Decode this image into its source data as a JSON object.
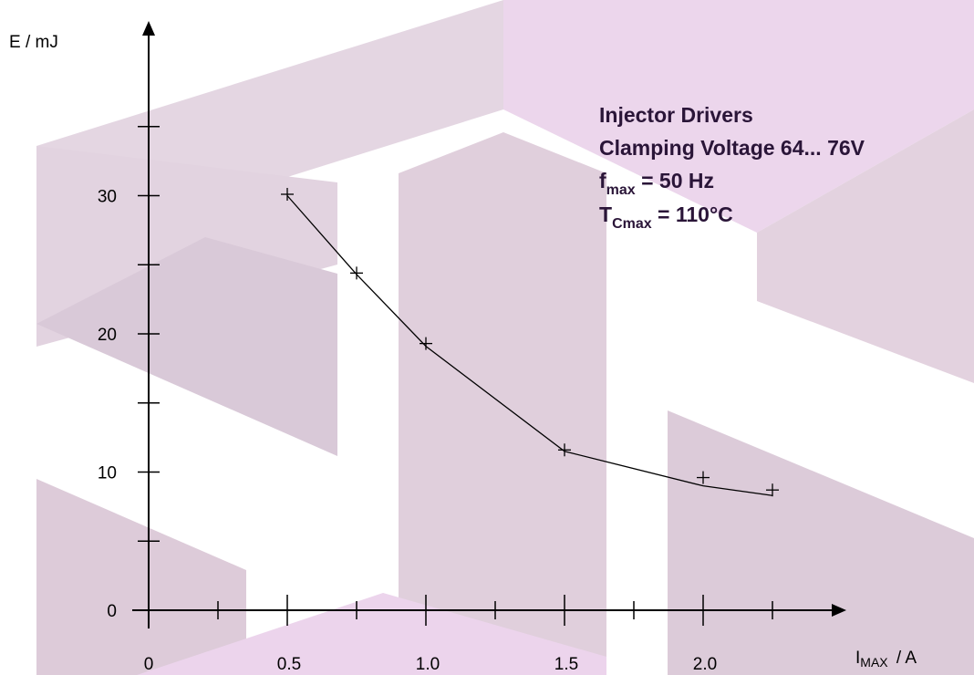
{
  "chart_data": {
    "type": "line",
    "x": [
      0.5,
      0.75,
      1.0,
      1.5,
      2.0,
      2.25
    ],
    "y": [
      30,
      24.3,
      19.1,
      11.5,
      9.0,
      8.3
    ],
    "markers": [
      {
        "x": 0.5,
        "y": 30.1
      },
      {
        "x": 0.75,
        "y": 24.4
      },
      {
        "x": 1.0,
        "y": 19.3
      },
      {
        "x": 1.5,
        "y": 11.6
      },
      {
        "x": 2.0,
        "y": 9.6
      },
      {
        "x": 2.25,
        "y": 8.7
      }
    ],
    "xlim": [
      0,
      2.5
    ],
    "ylim": [
      0,
      40
    ],
    "x_ticks": [
      0,
      0.25,
      0.5,
      0.75,
      1.0,
      1.25,
      1.5,
      1.75,
      2.0,
      2.25
    ],
    "x_tick_labels": [
      {
        "value": 0,
        "label": "0"
      },
      {
        "value": 0.5,
        "label": "0.5"
      },
      {
        "value": 1.0,
        "label": "1.0"
      },
      {
        "value": 1.5,
        "label": "1.5"
      },
      {
        "value": 2.0,
        "label": "2.0"
      }
    ],
    "y_ticks": [
      0,
      5,
      10,
      15,
      20,
      25,
      30,
      35
    ],
    "y_tick_labels": [
      {
        "value": 0,
        "label": "0"
      },
      {
        "value": 10,
        "label": "10"
      },
      {
        "value": 20,
        "label": "20"
      },
      {
        "value": 30,
        "label": "30"
      }
    ],
    "ylabel": "E / mJ",
    "xlabel": {
      "main": "I",
      "sub": "MAX",
      "unit": " / A"
    },
    "grid": false,
    "annotations": {
      "line1": "Injector Drivers",
      "line2": "Clamping Voltage 64... 76V",
      "line3": {
        "main": "f",
        "sub": "max",
        "rest": " = 50 Hz"
      },
      "line4": {
        "main": "T",
        "sub": "Cmax",
        "rest": " = 110°C"
      }
    },
    "colors": {
      "axis": "#000000",
      "line": "#000000",
      "annotation": "#2a1538"
    }
  }
}
